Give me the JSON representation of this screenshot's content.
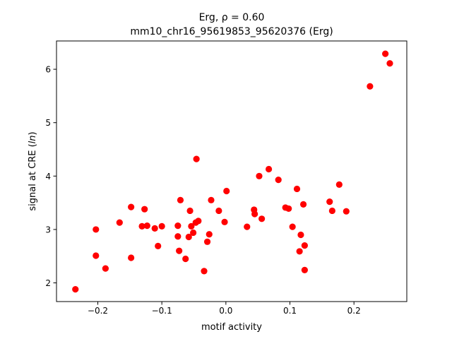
{
  "chart_data": {
    "type": "scatter",
    "title_line1": "Erg, ρ = 0.60",
    "title_line2": "mm10_chr16_95619853_95620376 (Erg)",
    "xlabel": "motif activity",
    "ylabel_prefix": "signal at CRE (",
    "ylabel_var": "ln",
    "ylabel_suffix": ")",
    "xlim": [
      -0.2645,
      0.2825
    ],
    "ylim": [
      1.65,
      6.53
    ],
    "xticks": [
      {
        "value": -0.2,
        "label": "−0.2"
      },
      {
        "value": -0.1,
        "label": "−0.1"
      },
      {
        "value": 0.0,
        "label": "0.0"
      },
      {
        "value": 0.1,
        "label": "0.1"
      },
      {
        "value": 0.2,
        "label": "0.2"
      }
    ],
    "yticks": [
      {
        "value": 2,
        "label": "2"
      },
      {
        "value": 3,
        "label": "3"
      },
      {
        "value": 4,
        "label": "4"
      },
      {
        "value": 5,
        "label": "5"
      },
      {
        "value": 6,
        "label": "6"
      }
    ],
    "grid": false,
    "marker_color": "#ff0000",
    "points": [
      [
        -0.235,
        1.88
      ],
      [
        -0.203,
        3.0
      ],
      [
        -0.203,
        2.51
      ],
      [
        -0.188,
        2.27
      ],
      [
        -0.166,
        3.13
      ],
      [
        -0.148,
        3.42
      ],
      [
        -0.148,
        2.47
      ],
      [
        -0.131,
        3.06
      ],
      [
        -0.127,
        3.38
      ],
      [
        -0.123,
        3.07
      ],
      [
        -0.111,
        3.02
      ],
      [
        -0.106,
        2.69
      ],
      [
        -0.1,
        3.06
      ],
      [
        -0.075,
        3.07
      ],
      [
        -0.075,
        2.87
      ],
      [
        -0.073,
        2.6
      ],
      [
        -0.071,
        3.55
      ],
      [
        -0.063,
        2.45
      ],
      [
        -0.058,
        2.86
      ],
      [
        -0.056,
        3.35
      ],
      [
        -0.054,
        3.06
      ],
      [
        -0.051,
        2.94
      ],
      [
        -0.047,
        3.13
      ],
      [
        -0.046,
        4.32
      ],
      [
        -0.043,
        3.16
      ],
      [
        -0.034,
        2.22
      ],
      [
        -0.029,
        2.77
      ],
      [
        -0.026,
        2.91
      ],
      [
        -0.023,
        3.55
      ],
      [
        -0.011,
        3.35
      ],
      [
        -0.002,
        3.14
      ],
      [
        0.001,
        3.72
      ],
      [
        0.033,
        3.05
      ],
      [
        0.044,
        3.37
      ],
      [
        0.045,
        3.29
      ],
      [
        0.052,
        4.0
      ],
      [
        0.056,
        3.2
      ],
      [
        0.067,
        4.13
      ],
      [
        0.082,
        3.93
      ],
      [
        0.093,
        3.41
      ],
      [
        0.098,
        3.39
      ],
      [
        0.104,
        3.05
      ],
      [
        0.111,
        3.76
      ],
      [
        0.115,
        2.59
      ],
      [
        0.117,
        2.9
      ],
      [
        0.121,
        3.47
      ],
      [
        0.123,
        2.7
      ],
      [
        0.123,
        2.24
      ],
      [
        0.162,
        3.52
      ],
      [
        0.166,
        3.35
      ],
      [
        0.177,
        3.84
      ],
      [
        0.188,
        3.34
      ],
      [
        0.225,
        5.68
      ],
      [
        0.249,
        6.29
      ],
      [
        0.256,
        6.11
      ]
    ]
  }
}
